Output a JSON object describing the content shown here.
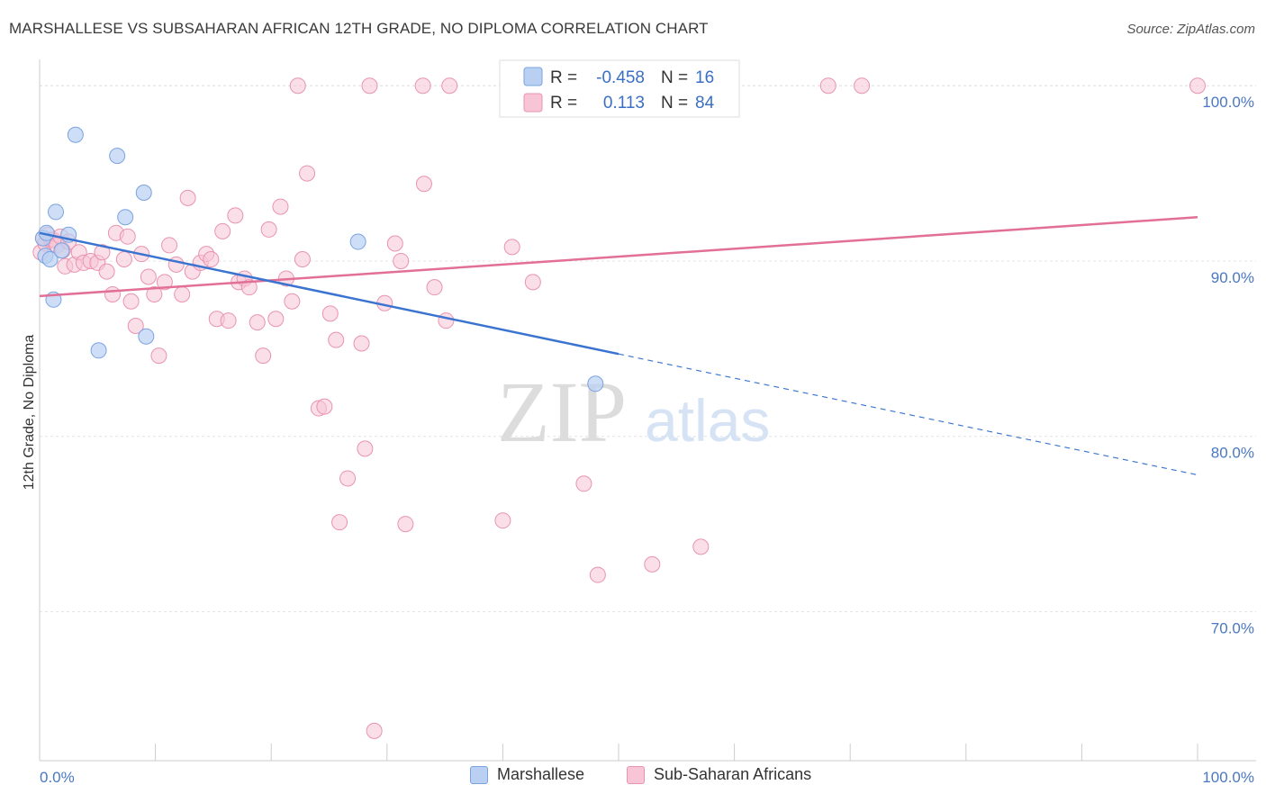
{
  "header": {
    "title": "MARSHALLESE VS SUBSAHARAN AFRICAN 12TH GRADE, NO DIPLOMA CORRELATION CHART",
    "source": "Source: ZipAtlas.com"
  },
  "watermark": {
    "zip": "ZIP",
    "atlas": "atlas"
  },
  "legend_box": {
    "rows": [
      {
        "r_label": "R =",
        "r_value": "-0.458",
        "n_label": "N =",
        "n_value": "16"
      },
      {
        "r_label": "R =",
        "r_value": "0.113",
        "n_label": "N =",
        "n_value": "84"
      }
    ]
  },
  "bottom_legend": {
    "series1": "Marshallese",
    "series2": "Sub-Saharan Africans"
  },
  "colors": {
    "blue_fill": "#b9d0f2",
    "blue_stroke": "#7aa3e0",
    "blue_line": "#3a74d0",
    "pink_fill": "#f7c5d5",
    "pink_stroke": "#e993b0",
    "pink_line": "#e26f97",
    "tick_text": "#4a78c2"
  },
  "chart_data": {
    "type": "scatter",
    "title": "MARSHALLESE VS SUBSAHARAN AFRICAN 12TH GRADE, NO DIPLOMA CORRELATION CHART",
    "xlabel": "",
    "ylabel": "12th Grade, No Diploma",
    "xlim": [
      0,
      100
    ],
    "ylim": [
      61.5,
      101.5
    ],
    "x_tick_labels": [
      "0.0%",
      "100.0%"
    ],
    "y_ticks": [
      70,
      80,
      90,
      100
    ],
    "y_tick_labels": [
      "70.0%",
      "80.0%",
      "90.0%",
      "100.0%"
    ],
    "grid": true,
    "legend_position": "top-center",
    "series": [
      {
        "name": "Marshallese",
        "r": -0.458,
        "n": 16,
        "trend": {
          "x0": 0,
          "y0": 91.6,
          "x1": 50,
          "y1": 84.7,
          "dash_x1": 100,
          "dash_y1": 77.8
        },
        "points": [
          [
            0.3,
            91.3
          ],
          [
            0.5,
            90.3
          ],
          [
            0.6,
            91.6
          ],
          [
            0.9,
            90.1
          ],
          [
            1.2,
            87.8
          ],
          [
            1.4,
            92.8
          ],
          [
            1.9,
            90.6
          ],
          [
            2.5,
            91.5
          ],
          [
            3.1,
            97.2
          ],
          [
            5.1,
            84.9
          ],
          [
            6.7,
            96.0
          ],
          [
            7.4,
            92.5
          ],
          [
            9.0,
            93.9
          ],
          [
            9.2,
            85.7
          ],
          [
            27.5,
            91.1
          ],
          [
            48.0,
            83.0
          ]
        ]
      },
      {
        "name": "Sub-Saharan Africans",
        "r": 0.113,
        "n": 84,
        "trend": {
          "x0": 0,
          "y0": 88.0,
          "x1": 100,
          "y1": 92.5
        },
        "points": [
          [
            0.1,
            90.5
          ],
          [
            0.3,
            91.3
          ],
          [
            0.5,
            91.0
          ],
          [
            0.7,
            91.5
          ],
          [
            1.0,
            91.2
          ],
          [
            1.2,
            91.2
          ],
          [
            1.5,
            90.9
          ],
          [
            1.8,
            91.4
          ],
          [
            2.0,
            90.6
          ],
          [
            2.2,
            89.7
          ],
          [
            2.5,
            91.1
          ],
          [
            3.0,
            89.8
          ],
          [
            3.4,
            90.5
          ],
          [
            3.8,
            89.9
          ],
          [
            4.4,
            90.0
          ],
          [
            5.0,
            89.9
          ],
          [
            5.4,
            90.5
          ],
          [
            5.8,
            89.4
          ],
          [
            6.3,
            88.1
          ],
          [
            6.6,
            91.6
          ],
          [
            7.3,
            90.1
          ],
          [
            7.6,
            91.4
          ],
          [
            7.9,
            87.7
          ],
          [
            8.3,
            86.3
          ],
          [
            8.8,
            90.4
          ],
          [
            9.4,
            89.1
          ],
          [
            9.9,
            88.1
          ],
          [
            10.3,
            84.6
          ],
          [
            10.8,
            88.8
          ],
          [
            11.2,
            90.9
          ],
          [
            11.8,
            89.8
          ],
          [
            12.3,
            88.1
          ],
          [
            12.8,
            93.6
          ],
          [
            13.2,
            89.4
          ],
          [
            13.9,
            89.9
          ],
          [
            14.4,
            90.4
          ],
          [
            14.8,
            90.1
          ],
          [
            15.3,
            86.7
          ],
          [
            15.8,
            91.7
          ],
          [
            16.3,
            86.6
          ],
          [
            16.9,
            92.6
          ],
          [
            17.2,
            88.8
          ],
          [
            17.7,
            89.0
          ],
          [
            18.1,
            88.5
          ],
          [
            18.8,
            86.5
          ],
          [
            19.3,
            84.6
          ],
          [
            19.8,
            91.8
          ],
          [
            20.4,
            86.7
          ],
          [
            20.8,
            93.1
          ],
          [
            21.3,
            89.0
          ],
          [
            21.8,
            87.7
          ],
          [
            22.7,
            90.1
          ],
          [
            23.1,
            95.0
          ],
          [
            24.1,
            81.6
          ],
          [
            24.6,
            81.7
          ],
          [
            25.1,
            87.0
          ],
          [
            25.6,
            85.5
          ],
          [
            25.9,
            75.1
          ],
          [
            26.6,
            77.6
          ],
          [
            27.8,
            85.3
          ],
          [
            28.1,
            79.3
          ],
          [
            28.9,
            63.2
          ],
          [
            29.8,
            87.6
          ],
          [
            30.7,
            91.0
          ],
          [
            31.2,
            90.0
          ],
          [
            31.6,
            75.0
          ],
          [
            33.2,
            94.4
          ],
          [
            34.1,
            88.5
          ],
          [
            35.1,
            86.6
          ],
          [
            40.0,
            75.2
          ],
          [
            40.8,
            90.8
          ],
          [
            42.6,
            88.8
          ],
          [
            47.0,
            77.3
          ],
          [
            48.2,
            72.1
          ],
          [
            52.9,
            72.7
          ],
          [
            57.1,
            73.7
          ],
          [
            22.3,
            100.0
          ],
          [
            28.5,
            100.0
          ],
          [
            33.1,
            100.0
          ],
          [
            35.4,
            100.0
          ],
          [
            51.3,
            100.0
          ],
          [
            68.1,
            100.0
          ],
          [
            71.0,
            100.0
          ],
          [
            100.0,
            100.0
          ]
        ]
      }
    ]
  }
}
